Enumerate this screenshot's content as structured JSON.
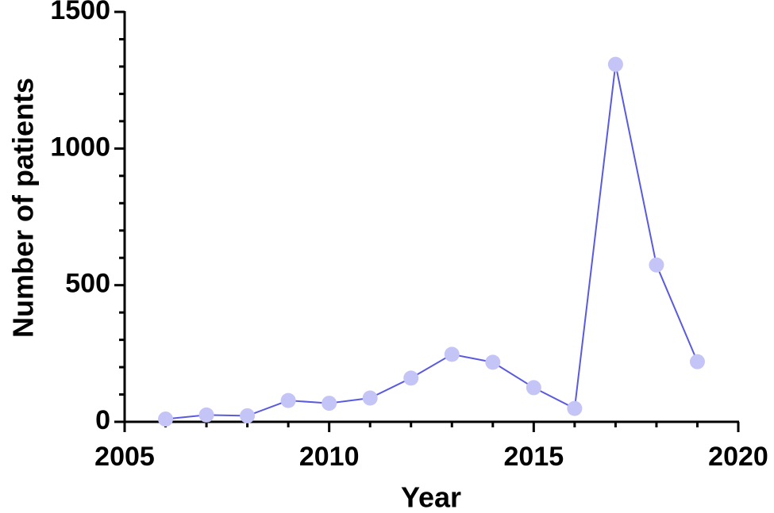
{
  "chart_data": {
    "type": "line",
    "x_label": "Year",
    "y_label": "Number of patients",
    "x": [
      2006,
      2007,
      2008,
      2009,
      2010,
      2011,
      2012,
      2013,
      2014,
      2015,
      2016,
      2017,
      2018,
      2019
    ],
    "series": [
      {
        "name": "Number of patients",
        "color": "#5a5ae0",
        "marker_color": "#c4c4f6",
        "values": [
          10,
          25,
          22,
          78,
          68,
          87,
          160,
          247,
          218,
          125,
          49,
          1308,
          574,
          220
        ]
      }
    ],
    "xlim": [
      2005,
      2020
    ],
    "xticks": [
      2005,
      2010,
      2015,
      2020
    ],
    "xminor": [
      2006,
      2007,
      2008,
      2009,
      2011,
      2012,
      2013,
      2014,
      2016,
      2017,
      2018,
      2019
    ],
    "ylim": [
      0,
      1500
    ],
    "yticks": [
      0,
      500,
      1000,
      1500
    ],
    "yminor": [
      100,
      200,
      300,
      400,
      600,
      700,
      800,
      900,
      1100,
      1200,
      1300,
      1400
    ],
    "grid": false
  }
}
